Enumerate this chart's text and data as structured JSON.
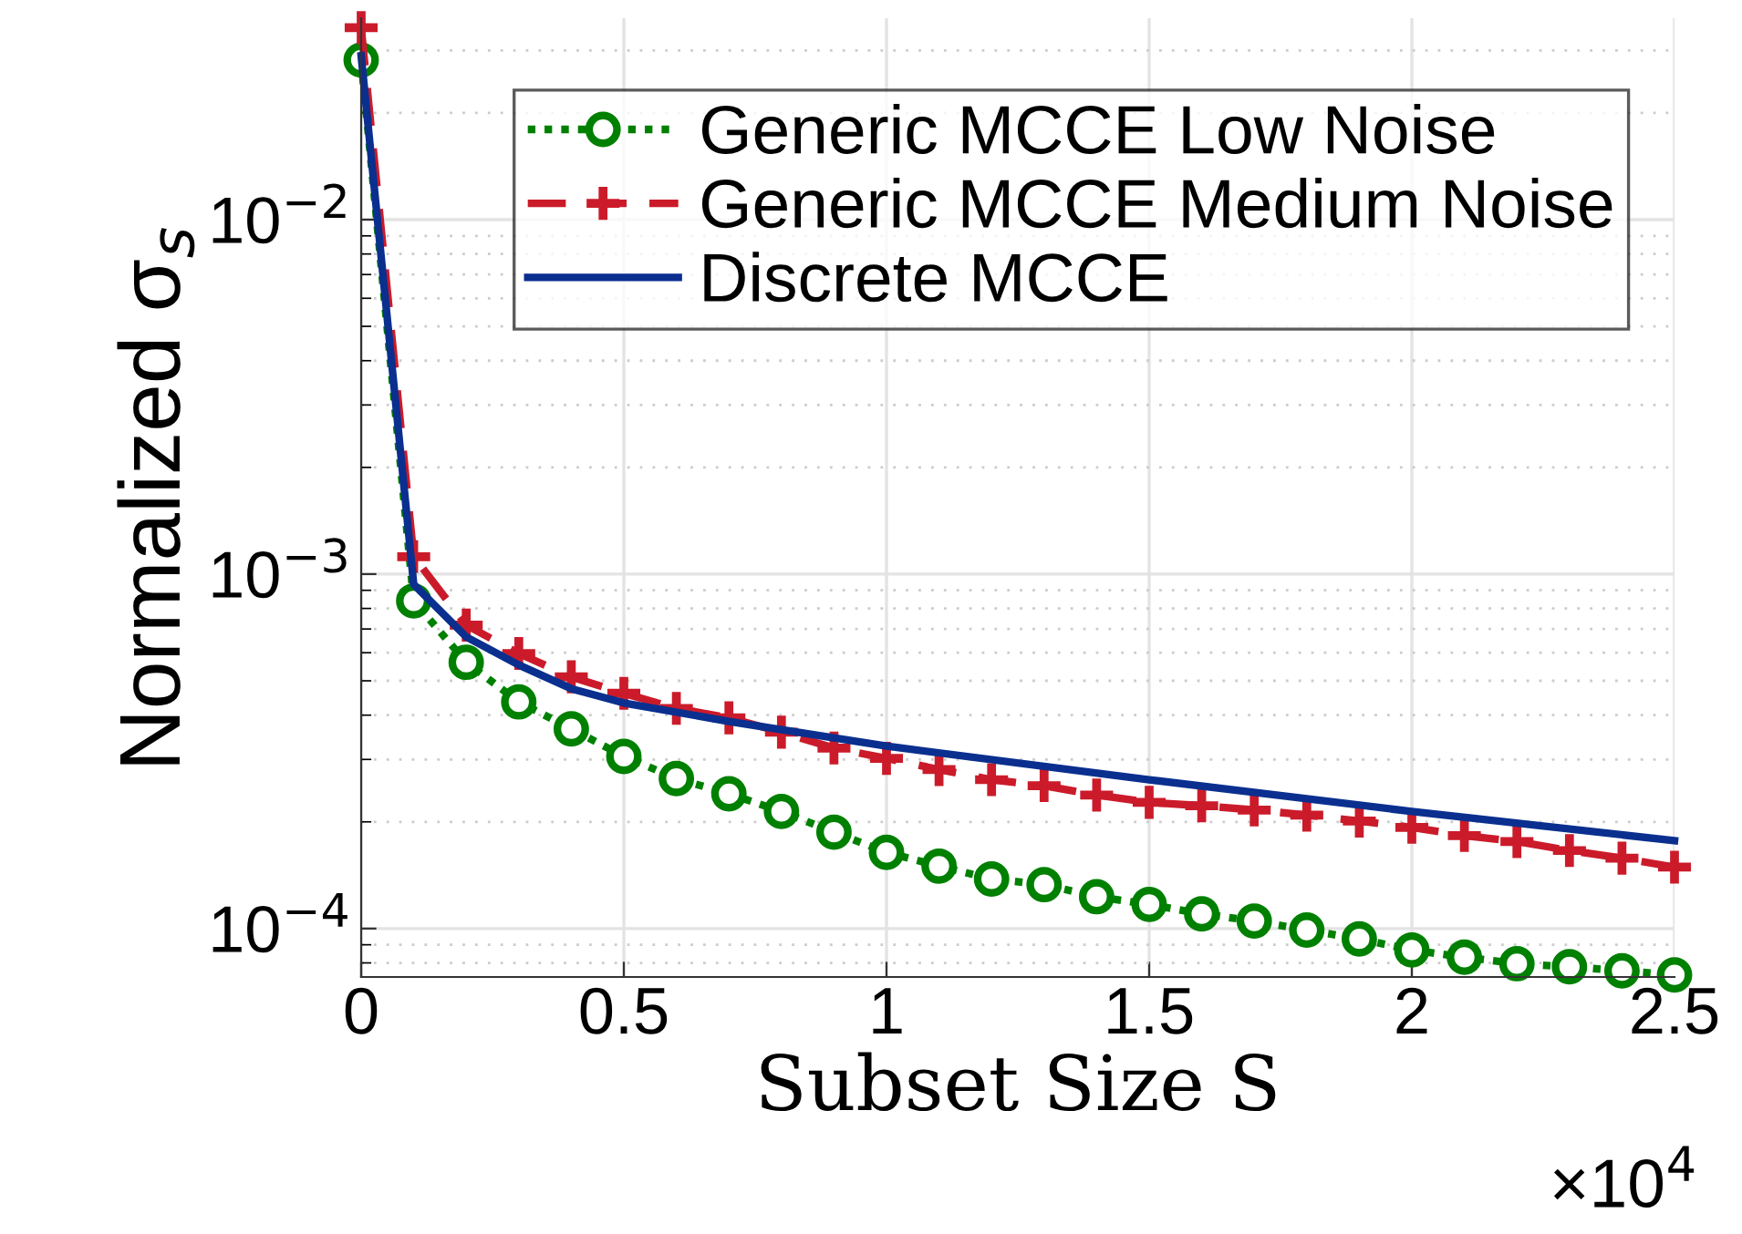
{
  "chart_data": {
    "type": "line",
    "xlabel": "Subset Size S",
    "ylabel": "Normalized σ$_{s}$",
    "log": "y",
    "grid": true,
    "legend": "top right",
    "xlim": [
      0,
      2.5
    ],
    "xticks": [
      0,
      0.5,
      1,
      1.5,
      2,
      2.5
    ],
    "ylim": [
      7.3e-05,
      0.037
    ],
    "yticks": [
      {
        "value": 0.0001,
        "label": "10$^{−4}$"
      },
      {
        "value": 0.001,
        "label": "10$^{−3}$"
      },
      {
        "value": 0.01,
        "label": "10$^{−2}$"
      }
    ],
    "annotations": [
      "×10$^{4}$"
    ],
    "series": [
      {
        "name": "Generic MCCE Low Noise",
        "color": "#008000",
        "marker": "circle",
        "line_style": "dotted",
        "x": [
          0,
          0.1,
          0.2,
          0.3,
          0.4,
          0.5,
          0.6,
          0.7,
          0.8,
          0.9,
          1,
          1.1,
          1.2,
          1.3,
          1.4,
          1.5,
          1.6,
          1.7,
          1.8,
          1.9,
          2,
          2.1,
          2.2,
          2.3,
          2.4,
          2.5
        ],
        "values": [
          0.0282,
          0.00084,
          0.000564,
          0.000436,
          0.000366,
          0.000306,
          0.000265,
          0.00024,
          0.000214,
          0.000187,
          0.000164,
          0.00015,
          0.000138,
          0.000133,
          0.000123,
          0.000117,
          0.00011,
          0.000105,
          9.9e-05,
          9.35e-05,
          8.7e-05,
          8.3e-05,
          7.96e-05,
          7.8e-05,
          7.6e-05,
          7.4e-05
        ]
      },
      {
        "name": "Generic MCCE Medium Noise",
        "color": "#cb1b2a",
        "marker": "cross",
        "line_style": "dashed",
        "x": [
          0,
          0.1,
          0.2,
          0.3,
          0.4,
          0.5,
          0.6,
          0.7,
          0.8,
          0.9,
          1,
          1.1,
          1.2,
          1.3,
          1.4,
          1.5,
          1.6,
          1.7,
          1.8,
          1.9,
          2,
          2.1,
          2.2,
          2.3,
          2.4,
          2.5
        ],
        "values": [
          0.0348,
          0.00112,
          0.000718,
          0.000597,
          0.000513,
          0.000461,
          0.000418,
          0.000393,
          0.000358,
          0.000323,
          0.000302,
          0.000281,
          0.000263,
          0.000253,
          0.000238,
          0.000227,
          0.000222,
          0.000216,
          0.000209,
          0.000201,
          0.000193,
          0.000183,
          0.000176,
          0.000166,
          0.000158,
          0.000149
        ]
      },
      {
        "name": "Discrete MCCE",
        "color": "#0a2f8f",
        "marker": "none",
        "line_style": "solid",
        "x": [
          0,
          0.1,
          0.2,
          0.3,
          0.4,
          0.5,
          0.7,
          1,
          1.5,
          2,
          2.5
        ],
        "values": [
          0.029,
          0.000935,
          0.000665,
          0.000554,
          0.000475,
          0.000433,
          0.000384,
          0.000327,
          0.000263,
          0.000214,
          0.000177
        ]
      }
    ]
  }
}
